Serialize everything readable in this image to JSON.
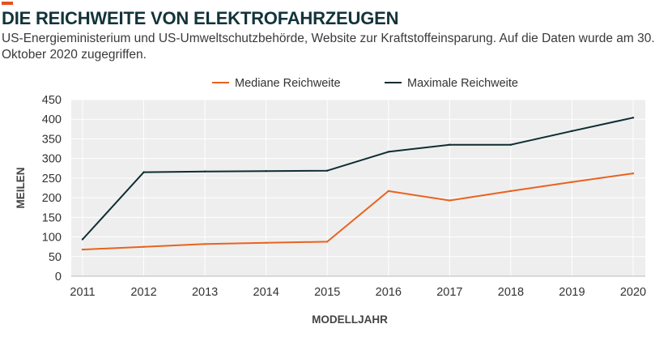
{
  "title": "DIE REICHWEITE VON ELEKTROFAHRZEUGEN",
  "subtitle": "US-Energieministerium und US-Umweltschutzbehörde, Website zur Kraftstoffeinsparung. Auf die Daten wurde am 30. Oktober 2020 zugegriffen.",
  "colors": {
    "accent": "#e8501f",
    "title": "#13333a",
    "median": "#e8631f",
    "max": "#0d2d33",
    "plot_bg": "#eeeeee",
    "grid": "#ffffff"
  },
  "chart_data": {
    "type": "line",
    "xlabel": "MODELLJAHR",
    "ylabel": "MEILEN",
    "ylim": [
      0,
      450
    ],
    "yticks": [
      "0",
      "50",
      "100",
      "150",
      "200",
      "250",
      "300",
      "350",
      "400",
      "450"
    ],
    "x": [
      "2011",
      "2012",
      "2013",
      "2014",
      "2015",
      "2016",
      "2017",
      "2018",
      "2019",
      "2020"
    ],
    "grid": true,
    "legend_position": "top",
    "series": [
      {
        "name": "Mediane Reichweite",
        "color": "#e8631f",
        "values": [
          68,
          75,
          82,
          85,
          88,
          217,
          193,
          217,
          240,
          262
        ]
      },
      {
        "name": "Maximale Reichweite",
        "color": "#0d2d33",
        "values": [
          94,
          265,
          267,
          268,
          269,
          317,
          335,
          335,
          370,
          404
        ]
      }
    ]
  }
}
